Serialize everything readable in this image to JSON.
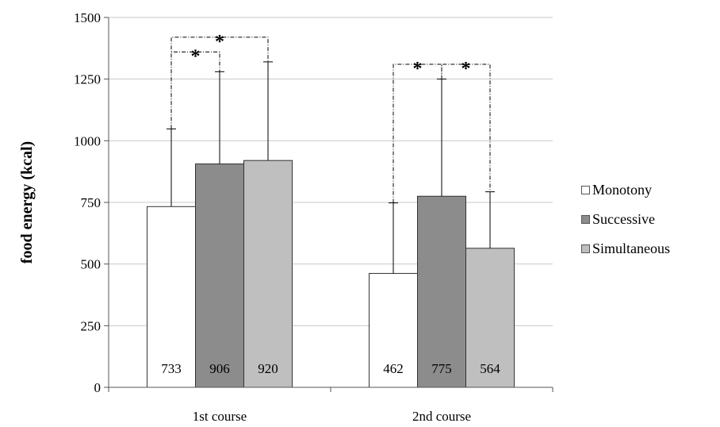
{
  "chart_data": {
    "type": "bar",
    "ylabel": "food energy (kcal)",
    "xlabel": "",
    "ylim": [
      0,
      1500
    ],
    "yticks": [
      0,
      250,
      500,
      750,
      1000,
      1250,
      1500
    ],
    "grid": true,
    "legend_position": "right",
    "categories": [
      "1st course",
      "2nd course"
    ],
    "series": [
      {
        "name": "Monotony",
        "color": "#ffffff",
        "values": [
          733,
          462
        ],
        "error_upper": [
          1048,
          748
        ],
        "value_labels": [
          "733",
          "462"
        ]
      },
      {
        "name": "Successive",
        "color": "#8c8c8c",
        "values": [
          906,
          775
        ],
        "error_upper": [
          1280,
          1250
        ],
        "value_labels": [
          "906",
          "775"
        ]
      },
      {
        "name": "Simultaneous",
        "color": "#bfbfbf",
        "values": [
          920,
          564
        ],
        "error_upper": [
          1320,
          793
        ],
        "value_labels": [
          "920",
          "564"
        ]
      }
    ],
    "significance": [
      {
        "category": 0,
        "from": 0,
        "to": 1,
        "y": 1360,
        "label": "*"
      },
      {
        "category": 0,
        "from": 0,
        "to": 2,
        "y": 1420,
        "label": "*"
      },
      {
        "category": 1,
        "from": 0,
        "to": 1,
        "y": 1310,
        "label": "*"
      },
      {
        "category": 1,
        "from": 1,
        "to": 2,
        "y": 1310,
        "label": "*"
      }
    ]
  }
}
